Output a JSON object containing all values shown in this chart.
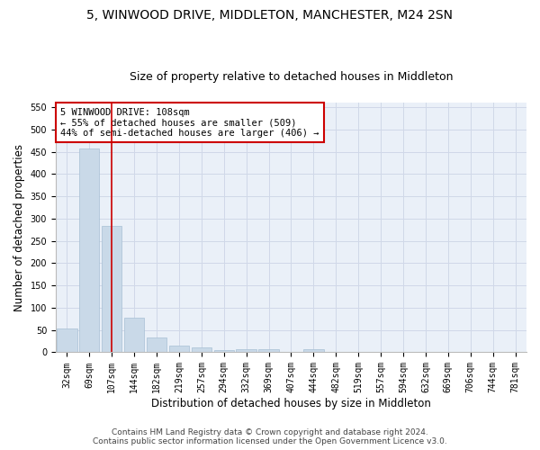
{
  "title": "5, WINWOOD DRIVE, MIDDLETON, MANCHESTER, M24 2SN",
  "subtitle": "Size of property relative to detached houses in Middleton",
  "xlabel": "Distribution of detached houses by size in Middleton",
  "ylabel": "Number of detached properties",
  "bar_labels": [
    "32sqm",
    "69sqm",
    "107sqm",
    "144sqm",
    "182sqm",
    "219sqm",
    "257sqm",
    "294sqm",
    "332sqm",
    "369sqm",
    "407sqm",
    "444sqm",
    "482sqm",
    "519sqm",
    "557sqm",
    "594sqm",
    "632sqm",
    "669sqm",
    "706sqm",
    "744sqm",
    "781sqm"
  ],
  "bar_values": [
    53,
    457,
    283,
    77,
    33,
    16,
    11,
    5,
    6,
    6,
    0,
    6,
    0,
    0,
    0,
    0,
    0,
    0,
    0,
    0,
    0
  ],
  "bar_color": "#c9d9e8",
  "bar_edge_color": "#a8c0d4",
  "grid_color": "#d0d8e8",
  "background_color": "#eaf0f8",
  "vline_x": 2,
  "vline_color": "#cc0000",
  "annotation_text": "5 WINWOOD DRIVE: 108sqm\n← 55% of detached houses are smaller (509)\n44% of semi-detached houses are larger (406) →",
  "annotation_box_color": "#ffffff",
  "annotation_edge_color": "#cc0000",
  "ylim": [
    0,
    560
  ],
  "yticks": [
    0,
    50,
    100,
    150,
    200,
    250,
    300,
    350,
    400,
    450,
    500,
    550
  ],
  "footer1": "Contains HM Land Registry data © Crown copyright and database right 2024.",
  "footer2": "Contains public sector information licensed under the Open Government Licence v3.0.",
  "title_fontsize": 10,
  "subtitle_fontsize": 9,
  "xlabel_fontsize": 8.5,
  "ylabel_fontsize": 8.5,
  "tick_fontsize": 7,
  "annotation_fontsize": 7.5,
  "footer_fontsize": 6.5
}
